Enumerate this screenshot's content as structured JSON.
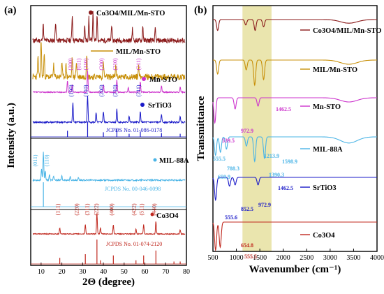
{
  "chart_data": [
    {
      "panel": "(a)",
      "type": "line",
      "xlabel": "2Θ (degree)",
      "ylabel": "Intensity (a.u.)",
      "xlim": [
        5,
        80
      ],
      "x_ticks": [
        10,
        20,
        30,
        40,
        50,
        60,
        70,
        80
      ],
      "legend_position": "right of each trace",
      "colors": {
        "co3o4_mil_mnsto": "#8b1a1a",
        "mil_mnsto": "#c8900a",
        "mn_sto": "#cc33cc",
        "srtio3": "#1a1ac8",
        "jcpds_srtio3": "#1a1ac8",
        "mil88a": "#4ab4e6",
        "jcpds_mil88a": "#4ab4e6",
        "co3o4": "#c0281e",
        "jcpds_co3o4": "#c0281e",
        "band": "#e6e0a0"
      },
      "series": [
        {
          "key": "co3o4_mil_mnsto",
          "name": "Co3O4/MIL/Mn-STO",
          "peaks": [
            [
              11,
              0.6
            ],
            [
              17,
              0.7
            ],
            [
              25,
              0.9
            ],
            [
              31,
              0.5
            ],
            [
              33,
              0.8
            ],
            [
              35,
              1.0
            ],
            [
              37,
              0.9
            ],
            [
              44,
              0.6
            ],
            [
              54,
              0.4
            ],
            [
              59,
              0.5
            ],
            [
              65,
              0.4
            ]
          ]
        },
        {
          "key": "mil_mnsto",
          "name": "MIL/Mn-STO",
          "peaks": [
            [
              8.5,
              0.5
            ],
            [
              10,
              1.0
            ],
            [
              11.5,
              0.6
            ],
            [
              16,
              0.3
            ],
            [
              20,
              0.4
            ],
            [
              22,
              0.3
            ],
            [
              25,
              0.5
            ],
            [
              27,
              0.4
            ],
            [
              32,
              0.6
            ],
            [
              40,
              0.4
            ],
            [
              46,
              0.3
            ],
            [
              57,
              0.3
            ]
          ]
        },
        {
          "key": "mn_sto",
          "name": "Mn-STO",
          "peaks": [
            [
              22.7,
              0.55
            ],
            [
              25,
              0.35
            ],
            [
              32.4,
              1.0
            ],
            [
              40,
              0.35
            ],
            [
              46.5,
              0.6
            ],
            [
              52,
              0.25
            ],
            [
              57.8,
              0.5
            ],
            [
              68,
              0.3
            ],
            [
              77,
              0.25
            ]
          ]
        },
        {
          "key": "srtio3",
          "name": "SrTiO3",
          "peaks": [
            [
              25.3,
              0.75
            ],
            [
              32.4,
              1.0
            ],
            [
              36.5,
              0.35
            ],
            [
              40,
              0.4
            ],
            [
              46.5,
              0.5
            ],
            [
              52.4,
              0.25
            ],
            [
              57.8,
              0.4
            ],
            [
              68,
              0.3
            ],
            [
              77,
              0.25
            ]
          ]
        },
        {
          "key": "jcpds_srtio3",
          "name": "JCPDS No. 01-086-0178",
          "peaks": [
            [
              22.7,
              0.4
            ],
            [
              32.4,
              1.0
            ],
            [
              40,
              0.3
            ],
            [
              46.5,
              0.5
            ],
            [
              52.4,
              0.2
            ],
            [
              57.8,
              0.35
            ],
            [
              68,
              0.25
            ],
            [
              77,
              0.2
            ]
          ]
        },
        {
          "key": "mil88a",
          "name": "MIL-88A",
          "peaks": [
            [
              10.2,
              0.4
            ],
            [
              11.1,
              1.0
            ],
            [
              12,
              0.35
            ],
            [
              14,
              0.2
            ],
            [
              16,
              0.15
            ],
            [
              20,
              0.15
            ],
            [
              24,
              0.12
            ],
            [
              28,
              0.1
            ]
          ]
        },
        {
          "key": "jcpds_mil88a",
          "name": "JCPDS No. 00-046-0098",
          "peaks": [
            [
              11.1,
              1.0
            ]
          ]
        },
        {
          "key": "co3o4",
          "name": "Co3O4",
          "peaks": [
            [
              19,
              0.3
            ],
            [
              31.3,
              0.45
            ],
            [
              36.9,
              1.0
            ],
            [
              38.6,
              0.3
            ],
            [
              44.8,
              0.45
            ],
            [
              55.7,
              0.25
            ],
            [
              59.4,
              0.45
            ],
            [
              65.3,
              0.6
            ],
            [
              77,
              0.2
            ]
          ]
        },
        {
          "key": "jcpds_co3o4",
          "name": "JCPDS No. 01-074-2120",
          "peaks": [
            [
              19,
              0.25
            ],
            [
              31.3,
              0.4
            ],
            [
              36.9,
              1.0
            ],
            [
              38.6,
              0.15
            ],
            [
              44.8,
              0.35
            ],
            [
              55.7,
              0.15
            ],
            [
              59.4,
              0.35
            ],
            [
              65.3,
              0.55
            ],
            [
              74,
              0.1
            ],
            [
              77,
              0.1
            ]
          ]
        }
      ],
      "annotations": {
        "mn_sto": [
          "(100)",
          "(011)",
          "(110)",
          "(200)",
          "(210)",
          "(211)"
        ],
        "srtio3": [
          "(100)",
          "(110)",
          "(200)",
          "(210)",
          "(211)"
        ],
        "mil88a": [
          "(011)",
          "(110)"
        ],
        "co3o4": [
          "(111)",
          "(220)",
          "(311)",
          "(222)",
          "(400)",
          "(422)",
          "(511)",
          "(440)"
        ]
      }
    },
    {
      "panel": "(b)",
      "type": "line",
      "xlabel": "Wavenumber (cm⁻¹)",
      "ylabel": "Transmittance",
      "xlim": [
        500,
        4000
      ],
      "x_ticks": [
        500,
        1000,
        1500,
        2000,
        2500,
        3000,
        3500,
        4000
      ],
      "highlight_band": [
        1130,
        1750
      ],
      "series": [
        {
          "key": "co3o4_mil_mnsto",
          "name": "Co3O4/MIL/Mn-STO",
          "dips": [
            [
              600,
              0.6
            ],
            [
              1200,
              0.3
            ],
            [
              1400,
              0.6
            ],
            [
              1580,
              0.4
            ],
            [
              3400,
              0.2
            ]
          ]
        },
        {
          "key": "mil_mnsto",
          "name": "MIL/Mn-STO",
          "dips": [
            [
              600,
              0.5
            ],
            [
              1210,
              0.35
            ],
            [
              1390,
              0.9
            ],
            [
              1580,
              0.7
            ],
            [
              3400,
              0.15
            ]
          ]
        },
        {
          "key": "mn_sto",
          "name": "Mn-STO",
          "dips": [
            [
              540,
              0.9
            ],
            [
              973,
              0.4
            ],
            [
              1462,
              0.3
            ],
            [
              3400,
              0.15
            ]
          ]
        },
        {
          "key": "mil88a",
          "name": "MIL-88A",
          "dips": [
            [
              555,
              0.6
            ],
            [
              660,
              0.5
            ],
            [
              788,
              0.4
            ],
            [
              1214,
              0.3
            ],
            [
              1390,
              0.8
            ],
            [
              1599,
              0.7
            ],
            [
              3400,
              0.2
            ]
          ]
        },
        {
          "key": "srtio3",
          "name": "SrTiO3",
          "dips": [
            [
              556,
              0.9
            ],
            [
              853,
              0.35
            ],
            [
              973,
              0.3
            ],
            [
              1462,
              0.3
            ]
          ]
        },
        {
          "key": "co3o4",
          "name": "Co3O4",
          "dips": [
            [
              556,
              1.0
            ],
            [
              655,
              0.9
            ]
          ]
        }
      ],
      "annotations": {
        "mn_sto": [
          "972.9",
          "539.5",
          "1462.5"
        ],
        "mil88a": [
          "555.5",
          "659.9",
          "788.3",
          "1213.9",
          "1598.9",
          "1390.3"
        ],
        "srtio3": [
          "555.6",
          "852.5",
          "972.9",
          "1462.5"
        ],
        "co3o4": [
          "654.8",
          "555.5"
        ]
      }
    }
  ]
}
